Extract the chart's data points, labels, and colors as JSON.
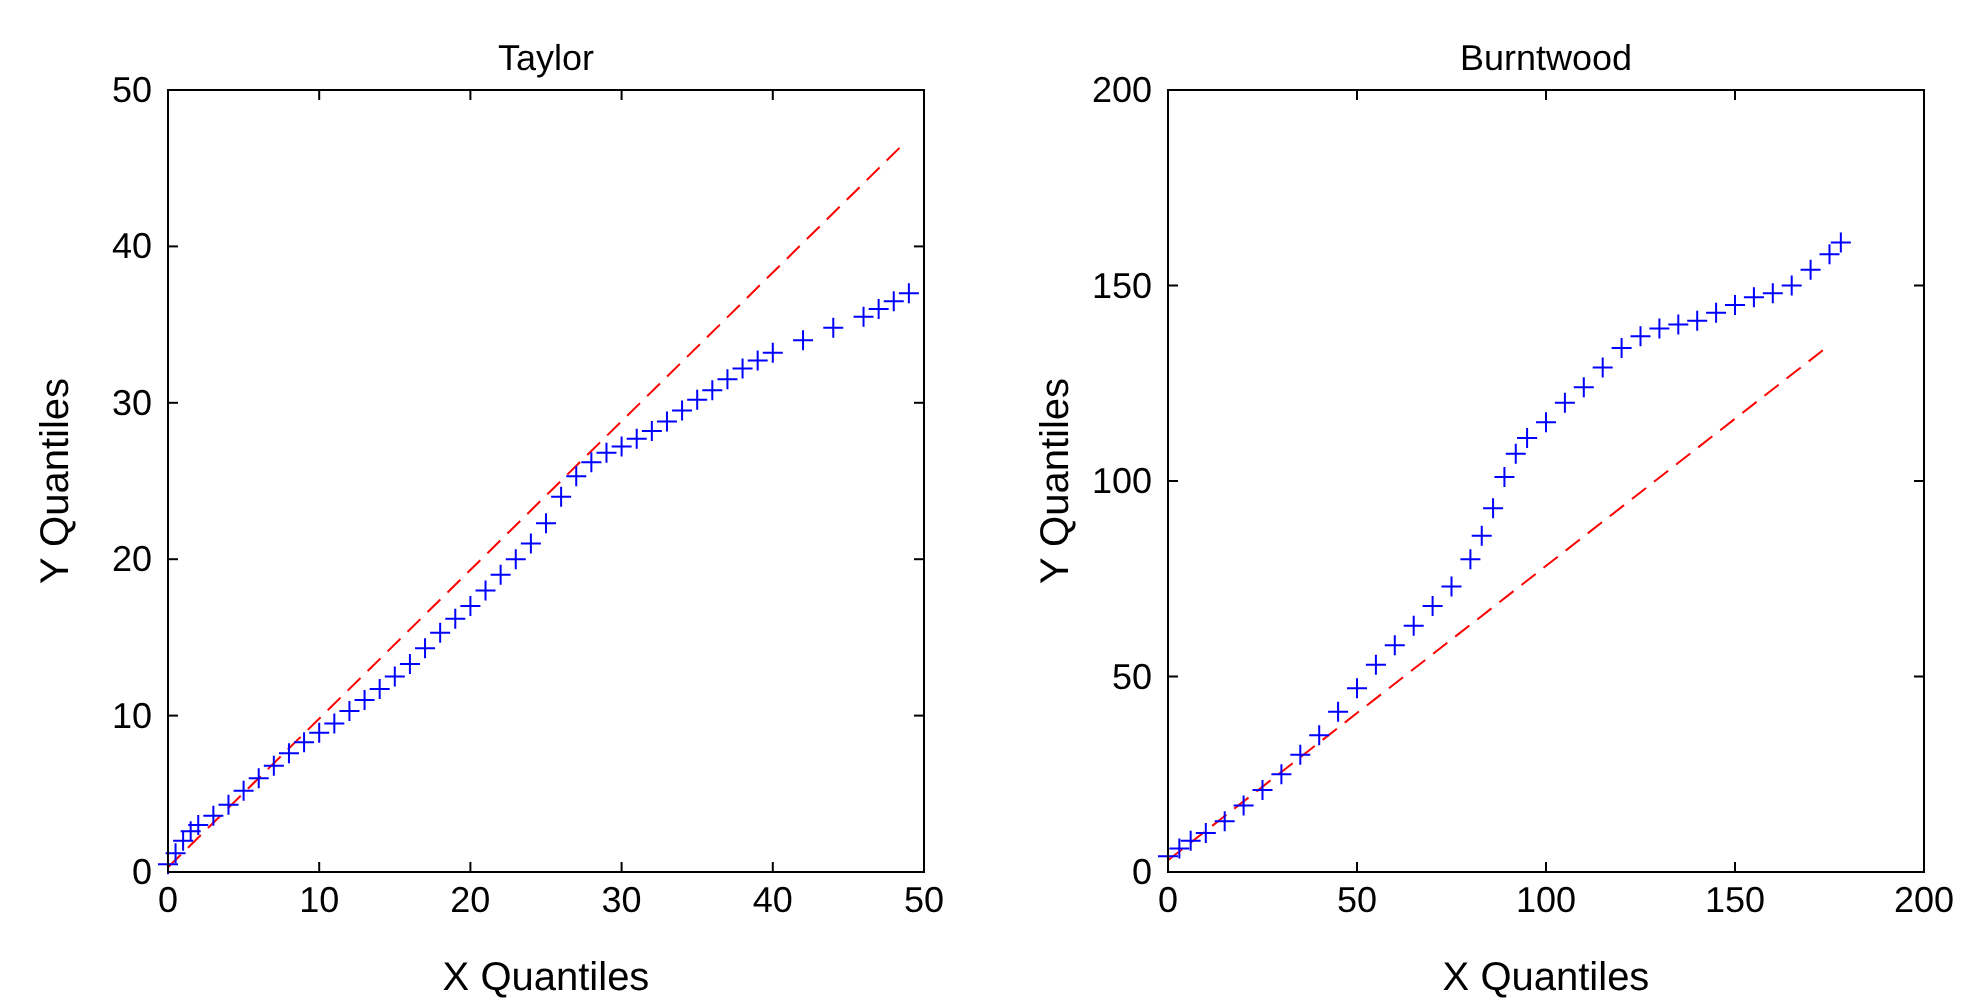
{
  "chart_data": [
    {
      "type": "scatter",
      "title": "Taylor",
      "xlabel": "X Quantiles",
      "ylabel": "Y Quantiles",
      "xlim": [
        0,
        50
      ],
      "ylim": [
        0,
        50
      ],
      "xticks": [
        0,
        10,
        20,
        30,
        40,
        50
      ],
      "yticks": [
        0,
        10,
        20,
        30,
        40,
        50
      ],
      "grid": false,
      "series": [
        {
          "marker": "cross",
          "color": "#0000ff",
          "x": [
            0,
            0.5,
            1,
            1.5,
            2,
            3,
            4,
            5,
            6,
            7,
            8,
            9,
            10,
            11,
            12,
            13,
            14,
            15,
            16,
            17,
            18,
            19,
            20,
            21,
            22,
            23,
            24,
            25,
            26,
            27,
            28,
            29,
            30,
            31,
            32,
            33,
            34,
            35,
            36,
            37,
            38,
            39,
            40,
            42,
            44,
            46,
            47,
            48,
            49
          ],
          "values": [
            0.5,
            1.2,
            2,
            2.6,
            3,
            3.6,
            4.3,
            5.2,
            6,
            6.8,
            7.6,
            8.3,
            8.9,
            9.5,
            10.3,
            11,
            11.7,
            12.5,
            13.3,
            14.3,
            15.3,
            16.2,
            17,
            18,
            19,
            20,
            21,
            22.3,
            24,
            25.3,
            26.2,
            26.8,
            27.2,
            27.7,
            28.2,
            28.8,
            29.5,
            30.2,
            30.8,
            31.5,
            32.2,
            32.7,
            33.2,
            34,
            34.8,
            35.5,
            36,
            36.5,
            37
          ]
        },
        {
          "type": "line",
          "line_style": "dashed",
          "color": "#ff0000",
          "x": [
            0,
            48.7
          ],
          "values": [
            0.3,
            46.6
          ]
        }
      ]
    },
    {
      "type": "scatter",
      "title": "Burntwood",
      "xlabel": "X Quantiles",
      "ylabel": "Y Quantiles",
      "xlim": [
        0,
        200
      ],
      "ylim": [
        0,
        200
      ],
      "xticks": [
        0,
        50,
        100,
        150,
        200
      ],
      "yticks": [
        0,
        50,
        100,
        150,
        200
      ],
      "grid": false,
      "series": [
        {
          "marker": "cross",
          "color": "#0000ff",
          "x": [
            0,
            3,
            6,
            10,
            15,
            20,
            25,
            30,
            35,
            40,
            45,
            50,
            55,
            60,
            65,
            70,
            75,
            80,
            83,
            86,
            89,
            92,
            95,
            100,
            105,
            110,
            115,
            120,
            125,
            130,
            135,
            140,
            145,
            150,
            155,
            160,
            165,
            170,
            175,
            178
          ],
          "values": [
            4,
            6,
            8,
            10,
            13,
            17,
            21,
            25,
            30,
            35,
            41,
            47,
            53,
            58,
            63,
            68,
            73,
            80,
            86,
            93,
            101,
            107,
            111,
            115,
            120,
            124,
            129,
            134,
            137,
            139,
            140,
            141,
            143,
            145,
            147,
            148,
            150,
            154,
            158,
            161
          ]
        },
        {
          "type": "line",
          "line_style": "dashed",
          "color": "#ff0000",
          "x": [
            0,
            174
          ],
          "values": [
            3,
            134
          ]
        }
      ]
    }
  ]
}
